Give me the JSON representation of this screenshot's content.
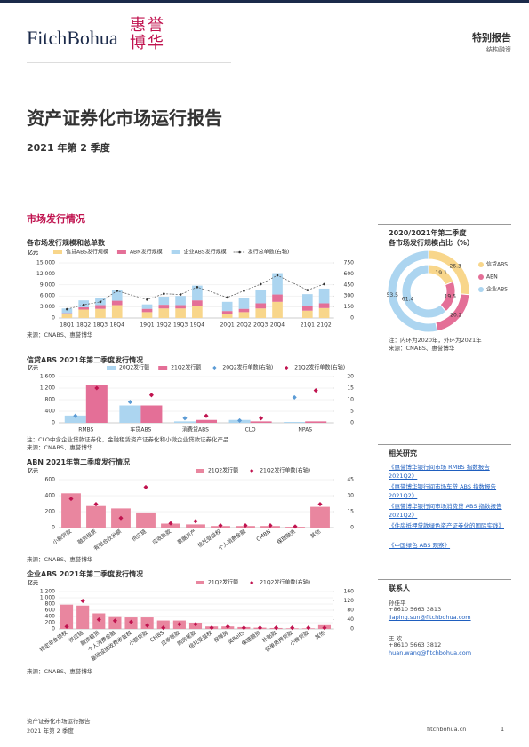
{
  "header": {
    "logo": "FitchBohua",
    "seal": "惠誉博华",
    "report_type": "特别报告",
    "sector": "结构融资"
  },
  "title": "资产证券化市场运行报告",
  "subtitle": "2021 年第 2 季度",
  "section": "市场发行情况",
  "chart_data": [
    {
      "type": "bar",
      "stacked": true,
      "title": "各市场发行规模和总单数",
      "ylabel": "亿元",
      "grid": true,
      "categories": [
        "18Q1",
        "18Q2",
        "18Q3",
        "18Q4",
        "19Q1",
        "19Q2",
        "19Q3",
        "19Q4",
        "20Q1",
        "20Q2",
        "20Q3",
        "20Q4",
        "21Q1",
        "21Q2"
      ],
      "series": [
        {
          "name": "信贷ABS发行规模",
          "mark": "bar",
          "color": "#f8d68b",
          "values": [
            1000,
            2300,
            2500,
            3500,
            1600,
            2600,
            2600,
            3300,
            1000,
            1600,
            2600,
            4400,
            2000,
            2700
          ]
        },
        {
          "name": "ABN发行规模",
          "mark": "bar",
          "color": "#e46f97",
          "values": [
            300,
            600,
            1000,
            1200,
            900,
            1000,
            900,
            1500,
            900,
            900,
            1400,
            2000,
            1300,
            1300
          ]
        },
        {
          "name": "企业ABS发行规模",
          "mark": "bar",
          "color": "#acd5f0",
          "values": [
            1300,
            1900,
            2000,
            3000,
            1200,
            2200,
            2500,
            4000,
            2500,
            3000,
            3500,
            5800,
            3200,
            4000
          ]
        },
        {
          "name": "发行总单数(右轴)",
          "mark": "line",
          "axis": "y2",
          "color": "#555555",
          "values": [
            120,
            180,
            220,
            370,
            250,
            330,
            320,
            420,
            280,
            370,
            460,
            580,
            380,
            460
          ]
        }
      ],
      "ylim": [
        0,
        15000
      ],
      "yticks": [
        0,
        {
          "value": 3000,
          "label": "3,000"
        },
        {
          "value": 6000,
          "label": "6,000"
        },
        {
          "value": 9000,
          "label": "9,000"
        },
        {
          "value": 12000,
          "label": "12,000"
        },
        {
          "value": 15000,
          "label": "15,000"
        }
      ],
      "y2lim": [
        0,
        750
      ],
      "y2ticks": [
        0,
        150,
        300,
        450,
        600,
        750
      ],
      "source": "来源：CNABS、惠誉博华"
    },
    {
      "type": "donut",
      "title": "2020/2021年第二季度",
      "subtitle": "各市场发行规模占比（%）",
      "categories": [
        "信贷ABS",
        "ABN",
        "企业ABS"
      ],
      "colors": [
        "#f8d68b",
        "#e46f97",
        "#acd5f0"
      ],
      "rings": [
        {
          "values": [
            26.3,
            20.2,
            53.5
          ]
        },
        {
          "values": [
            19.1,
            19.5,
            61.4
          ]
        }
      ],
      "note": "注：内环为2020年，外环为2021年",
      "source": "来源：CNABS、惠誉博华"
    },
    {
      "type": "bar",
      "stacked": false,
      "title": "信贷ABS 2021年第二季度发行情况",
      "ylabel": "亿元",
      "grid": true,
      "categories": [
        "RMBS",
        "车贷ABS",
        "消费贷ABS",
        "CLO",
        "NPAS"
      ],
      "series": [
        {
          "name": "20Q2发行额",
          "mark": "bar",
          "color": "#acd5f0",
          "values": [
            250,
            600,
            50,
            100,
            30
          ]
        },
        {
          "name": "21Q2发行额",
          "mark": "bar",
          "color": "#e46f97",
          "values": [
            1300,
            600,
            100,
            50,
            50
          ]
        },
        {
          "name": "20Q2发行单数(右轴)",
          "mark": "diamond",
          "axis": "y2",
          "color": "#5b9bd5",
          "values": [
            3,
            9,
            2,
            1,
            11
          ]
        },
        {
          "name": "21Q2发行单数(右轴)",
          "mark": "diamond",
          "axis": "y2",
          "color": "#c0134f",
          "values": [
            15,
            12,
            3,
            2,
            14
          ]
        }
      ],
      "ylim": [
        0,
        1600
      ],
      "yticks": [
        0,
        400,
        800,
        {
          "value": 1200,
          "label": "1,200"
        },
        {
          "value": 1600,
          "label": "1,600"
        }
      ],
      "y2lim": [
        0,
        20
      ],
      "y2ticks": [
        0,
        5,
        10,
        15,
        20
      ],
      "note": "注：CLO中含企业贷款证券化，金融租赁资产证券化和小微企业贷款证券化产品",
      "source": "来源：CNABS、惠誉博华"
    },
    {
      "type": "bar",
      "stacked": false,
      "title": "ABN 2021年第二季度发行情况",
      "ylabel": "亿元",
      "grid": true,
      "categories": [
        "小额贷款",
        "融资租赁",
        "有限合伙份额",
        "供应链",
        "应收账款",
        "票据资产",
        "信托受益权",
        "个人消费金融",
        "CMBN",
        "保理融资",
        "其他"
      ],
      "series": [
        {
          "name": "21Q2发行额",
          "mark": "bar",
          "color": "#e9869f",
          "values": [
            430,
            270,
            240,
            190,
            50,
            40,
            20,
            20,
            20,
            10,
            260
          ]
        },
        {
          "name": "21Q2发行单数(右轴)",
          "mark": "diamond",
          "axis": "y2",
          "color": "#c0134f",
          "values": [
            27,
            22,
            9,
            38,
            4,
            6,
            2,
            2,
            2,
            1,
            22
          ]
        }
      ],
      "ylim": [
        0,
        600
      ],
      "yticks": [
        0,
        200,
        400,
        600
      ],
      "y2lim": [
        0,
        45
      ],
      "y2ticks": [
        0,
        15,
        30,
        45
      ],
      "source": "来源：CNABS、惠誉博华"
    },
    {
      "type": "bar",
      "stacked": false,
      "title": "企业ABS 2021年第二季度发行情况",
      "ylabel": "亿元",
      "grid": true,
      "categories": [
        "特定非金债权",
        "供应链",
        "融资租赁",
        "个人消费金融",
        "基础设施收费收益权",
        "小额贷款",
        "CMBS",
        "应收账款",
        "购房尾款",
        "信托受益权",
        "保障房",
        "类Reits",
        "保理融资",
        "补贴款",
        "保单质押贷款",
        "小微贷款",
        "其他"
      ],
      "series": [
        {
          "name": "21Q2发行额",
          "mark": "bar",
          "color": "#e9869f",
          "values": [
            780,
            750,
            500,
            380,
            370,
            370,
            270,
            270,
            200,
            80,
            80,
            60,
            40,
            30,
            20,
            20,
            120
          ]
        },
        {
          "name": "21Q2发行单数(右轴)",
          "mark": "diamond",
          "axis": "y2",
          "color": "#c0134f",
          "values": [
            10,
            120,
            40,
            35,
            30,
            15,
            5,
            20,
            20,
            5,
            10,
            5,
            5,
            5,
            5,
            5,
            5
          ]
        }
      ],
      "ylim": [
        0,
        1200
      ],
      "yticks": [
        0,
        200,
        400,
        600,
        800,
        {
          "value": 1000,
          "label": "1,000"
        },
        {
          "value": 1200,
          "label": "1,200"
        }
      ],
      "y2lim": [
        0,
        160
      ],
      "y2ticks": [
        0,
        40,
        80,
        120,
        160
      ],
      "source": "来源：CNABS、惠誉博华"
    }
  ],
  "related": {
    "title": "相关研究",
    "items": [
      "《惠誉博华银行间市场 RMBS 指数报告 2021Q2》",
      "《惠誉博华银行间市场车贷 ABS 指数报告 2021Q2》",
      "《惠誉博华银行间市场消费贷 ABS 指数报告 2021Q2》",
      "《住房抵押贷款绿色资产证券化的国际实践》",
      "《中国绿色 ABS 观察》"
    ]
  },
  "contacts": {
    "title": "联系人",
    "people": [
      {
        "name": "孙佳平",
        "phone": "+8610 5663 3813",
        "email": "jiaping.sun@fitchbohua.com"
      },
      {
        "name": "王 欢",
        "phone": "+8610 5663 3812",
        "email": "huan.wang@fitchbohua.com"
      }
    ]
  },
  "footer": {
    "report": "资产证券化市场运行报告",
    "period": "2021 年第 2 季度",
    "site": "fitchbohua.cn",
    "page": "1"
  }
}
